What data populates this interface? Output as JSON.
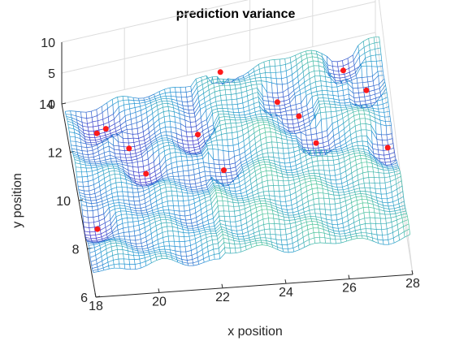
{
  "chart_data": {
    "type": "surface",
    "title": "prediction variance",
    "xlabel": "x position",
    "ylabel": "y position",
    "zlabel": "",
    "xlim": [
      18,
      28
    ],
    "ylim": [
      6,
      14
    ],
    "zlim": [
      0,
      10
    ],
    "xticks": [
      "18",
      "20",
      "22",
      "24",
      "26",
      "28"
    ],
    "yticks": [
      "6",
      "8",
      "10",
      "12",
      "14"
    ],
    "zticks": [
      "0",
      "5",
      "10"
    ],
    "grid": true,
    "colormap": "parula",
    "mesh_color_low": "#3b30c9",
    "mesh_color_high": "#f2e01e",
    "sample_points": {
      "name": "",
      "color": "#ff1a1a",
      "x": [
        18.4,
        18.9,
        19.2,
        19.8,
        20.2,
        22.0,
        22.6,
        23.0,
        24.6,
        25.2,
        25.6,
        26.8,
        27.4,
        27.8
      ],
      "y": [
        8.6,
        12.4,
        12.5,
        11.5,
        10.5,
        11.6,
        10.0,
        13.6,
        12.1,
        11.5,
        10.5,
        12.8,
        11.9,
        10.0
      ]
    }
  }
}
